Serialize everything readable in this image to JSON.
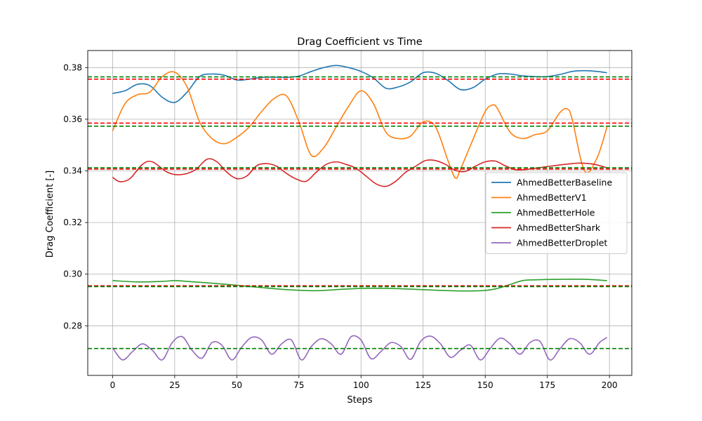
{
  "chart_data": {
    "type": "line",
    "title": "Drag Coefficient vs Time",
    "xlabel": "Steps",
    "ylabel": "Drag Coefficient [-]",
    "xlim": [
      -10,
      209
    ],
    "ylim": [
      0.2608,
      0.3866
    ],
    "xticks": [
      0,
      25,
      50,
      75,
      100,
      125,
      150,
      175,
      200
    ],
    "yticks": [
      0.28,
      0.3,
      0.32,
      0.34,
      0.36,
      0.38
    ],
    "grid": true,
    "legend_position": "center-right",
    "series": [
      {
        "name": "AhmedBetterBaseline",
        "color": "#1f77b4",
        "x": [
          0,
          5,
          10,
          15,
          20,
          25,
          30,
          35,
          40,
          45,
          50,
          55,
          60,
          65,
          70,
          75,
          80,
          85,
          90,
          95,
          100,
          105,
          110,
          115,
          120,
          125,
          130,
          135,
          140,
          145,
          150,
          155,
          160,
          165,
          170,
          175,
          180,
          185,
          190,
          195,
          199
        ],
        "y": [
          0.37,
          0.371,
          0.3735,
          0.373,
          0.3685,
          0.3665,
          0.3705,
          0.3765,
          0.3775,
          0.377,
          0.3752,
          0.3755,
          0.3762,
          0.3763,
          0.3762,
          0.3767,
          0.3785,
          0.38,
          0.3808,
          0.38,
          0.3785,
          0.376,
          0.372,
          0.3725,
          0.3745,
          0.378,
          0.3778,
          0.375,
          0.3715,
          0.3722,
          0.3755,
          0.3775,
          0.3775,
          0.3768,
          0.3765,
          0.3765,
          0.3773,
          0.3785,
          0.3788,
          0.3785,
          0.378
        ]
      },
      {
        "name": "AhmedBetterV1",
        "color": "#ff7f0e",
        "x": [
          0,
          5,
          10,
          15,
          20,
          25,
          30,
          35,
          40,
          45,
          50,
          55,
          60,
          65,
          70,
          75,
          80,
          85,
          90,
          95,
          100,
          105,
          110,
          115,
          120,
          125,
          130,
          135,
          138,
          140,
          145,
          150,
          153,
          155,
          160,
          165,
          170,
          175,
          180,
          183,
          185,
          190,
          195,
          199
        ],
        "y": [
          0.3555,
          0.366,
          0.3695,
          0.3705,
          0.3765,
          0.3782,
          0.3725,
          0.359,
          0.3525,
          0.3505,
          0.353,
          0.357,
          0.363,
          0.368,
          0.369,
          0.359,
          0.346,
          0.349,
          0.357,
          0.365,
          0.371,
          0.366,
          0.355,
          0.3525,
          0.3535,
          0.359,
          0.357,
          0.344,
          0.3372,
          0.3405,
          0.352,
          0.363,
          0.3655,
          0.364,
          0.355,
          0.3525,
          0.354,
          0.3555,
          0.3625,
          0.364,
          0.36,
          0.34,
          0.345,
          0.357
        ]
      },
      {
        "name": "AhmedBetterHole",
        "color": "#2ca02c",
        "x": [
          0,
          10,
          20,
          25,
          30,
          40,
          50,
          60,
          70,
          80,
          85,
          90,
          100,
          110,
          120,
          130,
          140,
          150,
          155,
          160,
          165,
          170,
          180,
          190,
          199
        ],
        "y": [
          0.2975,
          0.297,
          0.2972,
          0.2975,
          0.2972,
          0.2965,
          0.2957,
          0.2948,
          0.294,
          0.2936,
          0.2937,
          0.294,
          0.2945,
          0.2945,
          0.2942,
          0.2938,
          0.2935,
          0.2937,
          0.2945,
          0.296,
          0.2975,
          0.2978,
          0.298,
          0.298,
          0.2975
        ]
      },
      {
        "name": "AhmedBetterShark",
        "color": "#d62728",
        "x": [
          0,
          3,
          7,
          12,
          16,
          22,
          27,
          33,
          38,
          42,
          46,
          50,
          54,
          58,
          62,
          66,
          70,
          74,
          78,
          82,
          86,
          90,
          94,
          98,
          102,
          106,
          110,
          114,
          118,
          122,
          126,
          130,
          134,
          138,
          142,
          146,
          150,
          154,
          158,
          162,
          166,
          170,
          176,
          182,
          188,
          194,
          199
        ],
        "y": [
          0.3375,
          0.3358,
          0.337,
          0.3425,
          0.3435,
          0.3395,
          0.3385,
          0.3402,
          0.3445,
          0.3435,
          0.3395,
          0.337,
          0.338,
          0.342,
          0.3428,
          0.3418,
          0.339,
          0.3368,
          0.336,
          0.3395,
          0.3425,
          0.3435,
          0.3425,
          0.341,
          0.338,
          0.335,
          0.334,
          0.336,
          0.3395,
          0.3418,
          0.344,
          0.344,
          0.3425,
          0.3402,
          0.3398,
          0.3418,
          0.3435,
          0.3438,
          0.342,
          0.3405,
          0.3405,
          0.341,
          0.3418,
          0.3425,
          0.343,
          0.3425,
          0.3412
        ]
      },
      {
        "name": "AhmedBetterDroplet",
        "color": "#9467bd",
        "x": [
          0,
          4,
          8,
          12,
          16,
          20,
          24,
          28,
          32,
          36,
          40,
          44,
          48,
          52,
          56,
          60,
          64,
          68,
          72,
          76,
          80,
          84,
          88,
          92,
          96,
          100,
          104,
          108,
          112,
          116,
          120,
          124,
          128,
          132,
          136,
          140,
          144,
          148,
          152,
          156,
          160,
          164,
          168,
          172,
          176,
          180,
          184,
          188,
          192,
          196,
          199
        ],
        "y": [
          0.2715,
          0.2668,
          0.27,
          0.273,
          0.2705,
          0.2668,
          0.2735,
          0.2758,
          0.2705,
          0.2675,
          0.2735,
          0.2725,
          0.2668,
          0.2718,
          0.2755,
          0.2745,
          0.269,
          0.273,
          0.2745,
          0.2668,
          0.272,
          0.275,
          0.273,
          0.269,
          0.2758,
          0.2745,
          0.2673,
          0.27,
          0.2735,
          0.272,
          0.267,
          0.274,
          0.276,
          0.273,
          0.2678,
          0.2705,
          0.2725,
          0.2668,
          0.2712,
          0.2752,
          0.273,
          0.269,
          0.2735,
          0.274,
          0.2668,
          0.271,
          0.275,
          0.2735,
          0.269,
          0.2735,
          0.2755
        ]
      }
    ],
    "reference_lines": [
      {
        "y": 0.3764,
        "color": "#008000"
      },
      {
        "y": 0.3755,
        "color": "#ff0000"
      },
      {
        "y": 0.3585,
        "color": "#ff0000"
      },
      {
        "y": 0.3573,
        "color": "#008000"
      },
      {
        "y": 0.3412,
        "color": "#008000"
      },
      {
        "y": 0.3407,
        "color": "#ff0000"
      },
      {
        "y": 0.2955,
        "color": "#ff0000"
      },
      {
        "y": 0.2952,
        "color": "#008000"
      },
      {
        "y": 0.2712,
        "color": "#008000"
      }
    ]
  }
}
